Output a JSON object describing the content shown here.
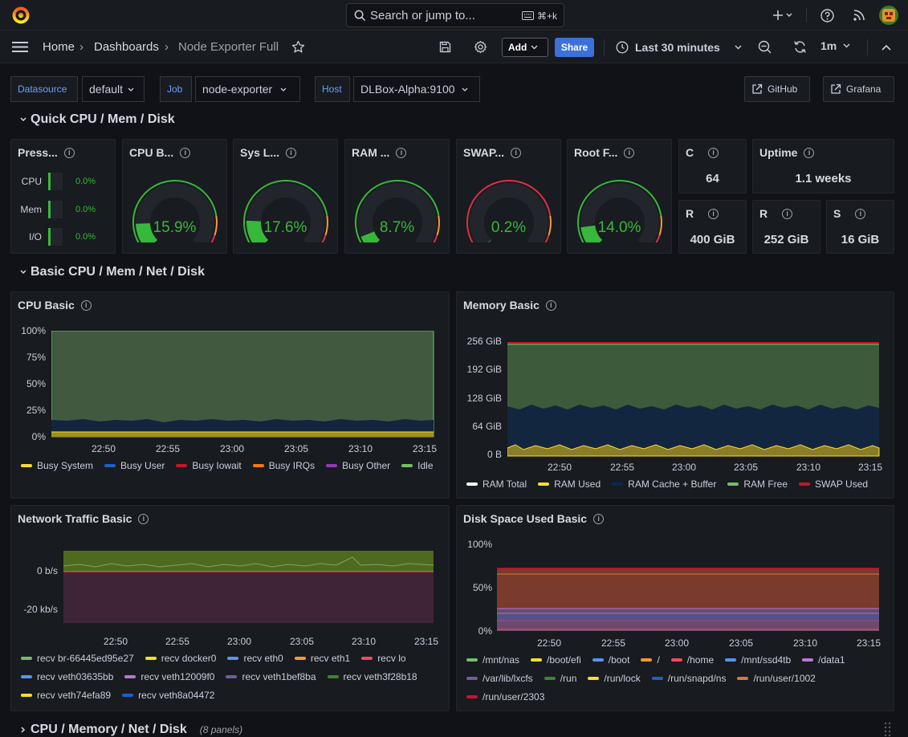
{
  "header": {
    "search_placeholder": "Search or jump to...",
    "search_shortcut": "⌘+k",
    "add_icon": "plus-icon",
    "help_icon": "help-icon",
    "news_icon": "rss-icon"
  },
  "nav": {
    "breadcrumb": [
      "Home",
      "Dashboards",
      "Node Exporter Full"
    ],
    "add_label": "Add",
    "share_label": "Share",
    "time_range": "Last 30 minutes",
    "refresh_interval": "1m"
  },
  "variables": [
    {
      "label": "Datasource",
      "value": "default"
    },
    {
      "label": "Job",
      "value": "node-exporter"
    },
    {
      "label": "Host",
      "value": "DLBox-Alpha:9100"
    }
  ],
  "links": {
    "github": "GitHub",
    "grafana": "Grafana"
  },
  "rows": {
    "quick": "Quick CPU / Mem / Disk",
    "basic": "Basic CPU / Mem / Net / Disk",
    "collapsed": "CPU / Memory / Net / Disk",
    "collapsed_count": "(8 panels)"
  },
  "pressure": {
    "title": "Press...",
    "items": [
      {
        "label": "CPU",
        "value": "0.0%"
      },
      {
        "label": "Mem",
        "value": "0.0%"
      },
      {
        "label": "I/O",
        "value": "0.0%"
      }
    ]
  },
  "gauges": [
    {
      "title": "CPU B...",
      "display": "15.9%",
      "value": 15.9
    },
    {
      "title": "Sys L...",
      "display": "17.6%",
      "value": 17.6
    },
    {
      "title": "RAM ...",
      "display": "8.7%",
      "value": 8.7
    },
    {
      "title": "SWAP...",
      "display": "0.2%",
      "value": 0.2
    },
    {
      "title": "Root F...",
      "display": "14.0%",
      "value": 14.0
    }
  ],
  "stats": {
    "cores": {
      "title": "C",
      "value": "64"
    },
    "uptime": {
      "title": "Uptime",
      "value": "1.1 weeks"
    },
    "rootfs_total": {
      "title": "R",
      "value": "400 GiB"
    },
    "ram_total": {
      "title": "R",
      "value": "252 GiB"
    },
    "swap_total": {
      "title": "S",
      "value": "16 GiB"
    }
  },
  "time_ticks": [
    "22:50",
    "22:55",
    "23:00",
    "23:05",
    "23:10",
    "23:15"
  ],
  "cpu_basic": {
    "title": "CPU Basic",
    "y_ticks": [
      "100%",
      "75%",
      "50%",
      "25%",
      "0%"
    ],
    "legend": [
      {
        "name": "Busy System",
        "color": "#fade2a"
      },
      {
        "name": "Busy User",
        "color": "#1f60c4"
      },
      {
        "name": "Busy Iowait",
        "color": "#c4162a"
      },
      {
        "name": "Busy IRQs",
        "color": "#ff780a"
      },
      {
        "name": "Busy Other",
        "color": "#8f3bb8"
      },
      {
        "name": "Idle",
        "color": "#73bf69"
      }
    ]
  },
  "memory_basic": {
    "title": "Memory Basic",
    "y_ticks": [
      "256 GiB",
      "192 GiB",
      "128 GiB",
      "64 GiB",
      "0 B"
    ],
    "legend": [
      {
        "name": "RAM Total",
        "color": "#ffffff"
      },
      {
        "name": "RAM Used",
        "color": "#fade2a"
      },
      {
        "name": "RAM Cache + Buffer",
        "color": "#052b51"
      },
      {
        "name": "RAM Free",
        "color": "#73bf69"
      },
      {
        "name": "SWAP Used",
        "color": "#c4162a"
      }
    ]
  },
  "network_basic": {
    "title": "Network Traffic Basic",
    "y_ticks": [
      "0 b/s",
      "-20 kb/s"
    ],
    "legend": [
      {
        "name": "recv br-66445ed95e27",
        "color": "#73bf69"
      },
      {
        "name": "recv docker0",
        "color": "#fade2a"
      },
      {
        "name": "recv eth0",
        "color": "#5794f2"
      },
      {
        "name": "recv eth1",
        "color": "#ff9830"
      },
      {
        "name": "recv lo",
        "color": "#f2495c"
      },
      {
        "name": "recv veth03635bb",
        "color": "#5794f2"
      },
      {
        "name": "recv veth12009f0",
        "color": "#b877d9"
      },
      {
        "name": "recv veth1bef8ba",
        "color": "#705da0"
      },
      {
        "name": "recv veth3f28b18",
        "color": "#37872d"
      },
      {
        "name": "recv veth74efa89",
        "color": "#fade2a"
      },
      {
        "name": "recv veth8a04472",
        "color": "#1f60c4"
      }
    ]
  },
  "disk_basic": {
    "title": "Disk Space Used Basic",
    "y_ticks": [
      "100%",
      "50%",
      "0%"
    ],
    "legend": [
      {
        "name": "/mnt/nas",
        "color": "#73bf69"
      },
      {
        "name": "/boot/efi",
        "color": "#fade2a"
      },
      {
        "name": "/boot",
        "color": "#5794f2"
      },
      {
        "name": "/",
        "color": "#ff9830"
      },
      {
        "name": "/home",
        "color": "#f2495c"
      },
      {
        "name": "/mnt/ssd4tb",
        "color": "#5794f2"
      },
      {
        "name": "/data1",
        "color": "#b877d9"
      },
      {
        "name": "/var/lib/lxcfs",
        "color": "#705da0"
      },
      {
        "name": "/run",
        "color": "#37872d"
      },
      {
        "name": "/run/lock",
        "color": "#fade2a"
      },
      {
        "name": "/run/snapd/ns",
        "color": "#1f60c4"
      },
      {
        "name": "/run/user/1002",
        "color": "#e0752d"
      },
      {
        "name": "/run/user/2303",
        "color": "#c4162a"
      }
    ]
  }
}
